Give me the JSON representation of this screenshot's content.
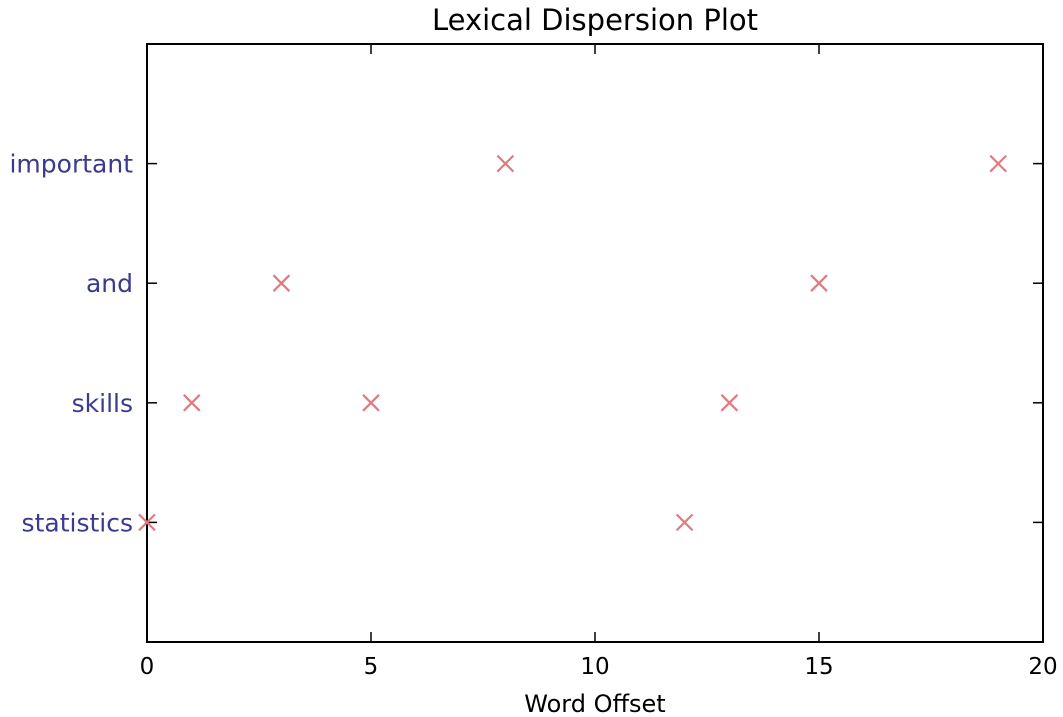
{
  "chart_data": {
    "type": "scatter",
    "title": "Lexical Dispersion Plot",
    "xlabel": "Word Offset",
    "ylabel": "",
    "xlim": [
      0,
      20
    ],
    "ylim": [
      -1,
      4
    ],
    "xticks": [
      0,
      5,
      10,
      15,
      20
    ],
    "categories": [
      "statistics",
      "skills",
      "and",
      "important"
    ],
    "grid": false,
    "marker": "x",
    "colors": {
      "marker": "#e07a80",
      "ytick_label": "#3a3a8f",
      "axes": "#000000"
    },
    "series": [
      {
        "values": [
          {
            "x": 0,
            "y": "statistics"
          },
          {
            "x": 12,
            "y": "statistics"
          },
          {
            "x": 1,
            "y": "skills"
          },
          {
            "x": 5,
            "y": "skills"
          },
          {
            "x": 13,
            "y": "skills"
          },
          {
            "x": 3,
            "y": "and"
          },
          {
            "x": 15,
            "y": "and"
          },
          {
            "x": 8,
            "y": "important"
          },
          {
            "x": 19,
            "y": "important"
          }
        ]
      }
    ]
  }
}
